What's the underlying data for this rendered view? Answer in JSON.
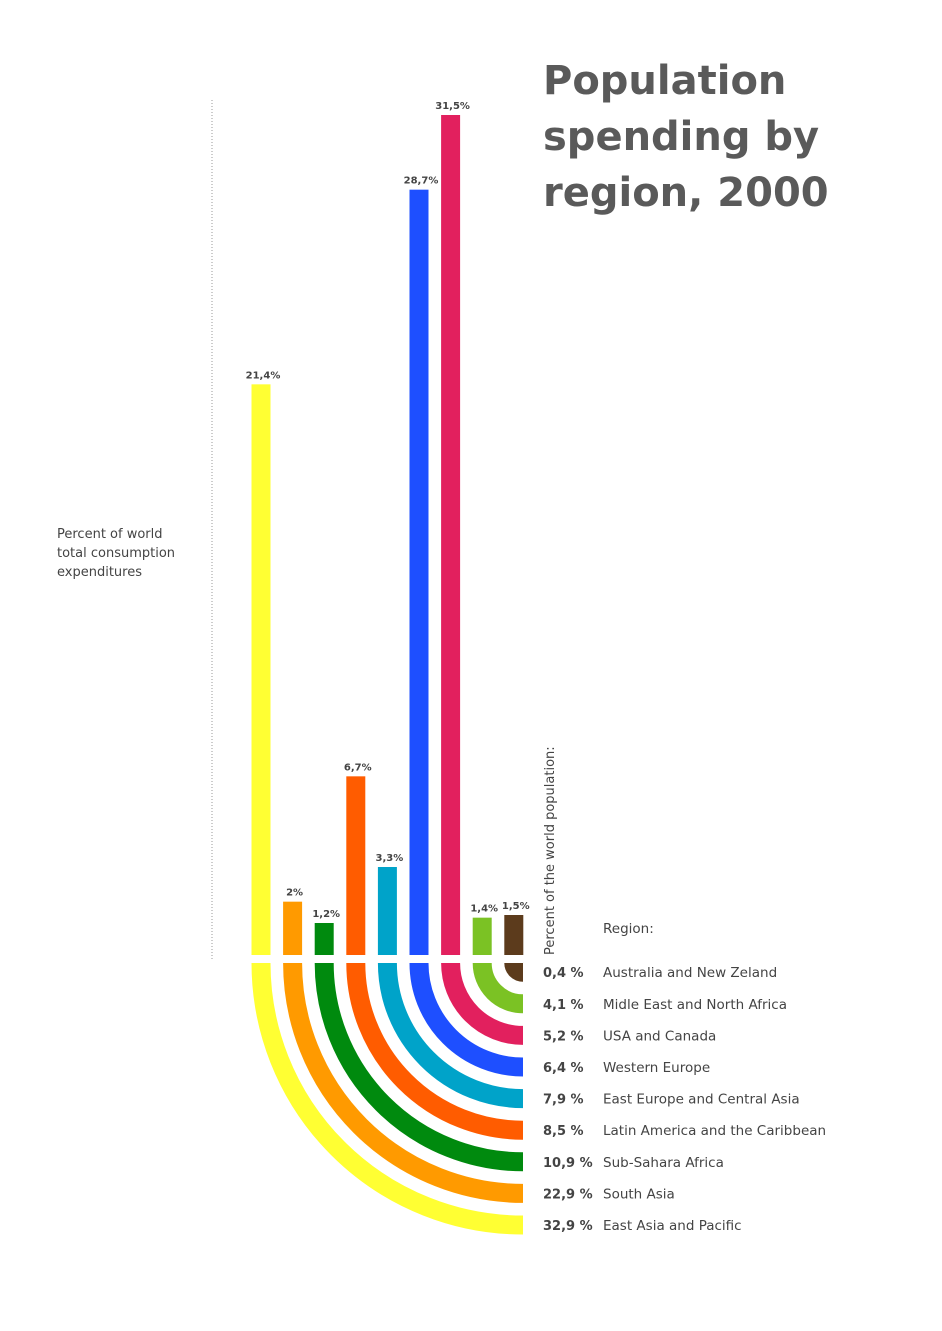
{
  "chart_data": {
    "type": "bar",
    "title": [
      "Population",
      "spending by",
      "region, 2000"
    ],
    "ylabel": [
      "Percent of world",
      "total consumption",
      "expenditures"
    ],
    "population_axis_label": "Percent of the world population:",
    "legend_header": "Region:",
    "ylim": [
      0,
      31.5
    ],
    "series": [
      {
        "region": "East Asia and Pacific",
        "spending": 21.4,
        "spending_label": "21,4%",
        "population": 32.9,
        "population_label": "32,9 %",
        "color": "#ffff33"
      },
      {
        "region": "South Asia",
        "spending": 2,
        "spending_label": "2%",
        "population": 22.9,
        "population_label": "22,9 %",
        "color": "#ff9a00"
      },
      {
        "region": "Sub-Sahara Africa",
        "spending": 1.2,
        "spending_label": "1,2%",
        "population": 10.9,
        "population_label": "10,9 %",
        "color": "#008a0e"
      },
      {
        "region": "Latin America and the Caribbean",
        "spending": 6.7,
        "spending_label": "6,7%",
        "population": 8.5,
        "population_label": "8,5 %",
        "color": "#ff5c00"
      },
      {
        "region": "East Europe and Central Asia",
        "spending": 3.3,
        "spending_label": "3,3%",
        "population": 7.9,
        "population_label": "7,9 %",
        "color": "#00a3c9"
      },
      {
        "region": "Western Europe",
        "spending": 28.7,
        "spending_label": "28,7%",
        "population": 6.4,
        "population_label": "6,4 %",
        "color": "#1e4fff"
      },
      {
        "region": "USA and Canada",
        "spending": 31.5,
        "spending_label": "31,5%",
        "population": 5.2,
        "population_label": "5,2 %",
        "color": "#e2205e"
      },
      {
        "region": "Midle East and North Africa",
        "spending": 1.4,
        "spending_label": "1,4%",
        "population": 4.1,
        "population_label": "4,1 %",
        "color": "#7bc224"
      },
      {
        "region": "Australia and New Zeland",
        "spending": 1.5,
        "spending_label": "1,5%",
        "population": 0.4,
        "population_label": "0,4 %",
        "color": "#5c3b1c"
      }
    ]
  }
}
